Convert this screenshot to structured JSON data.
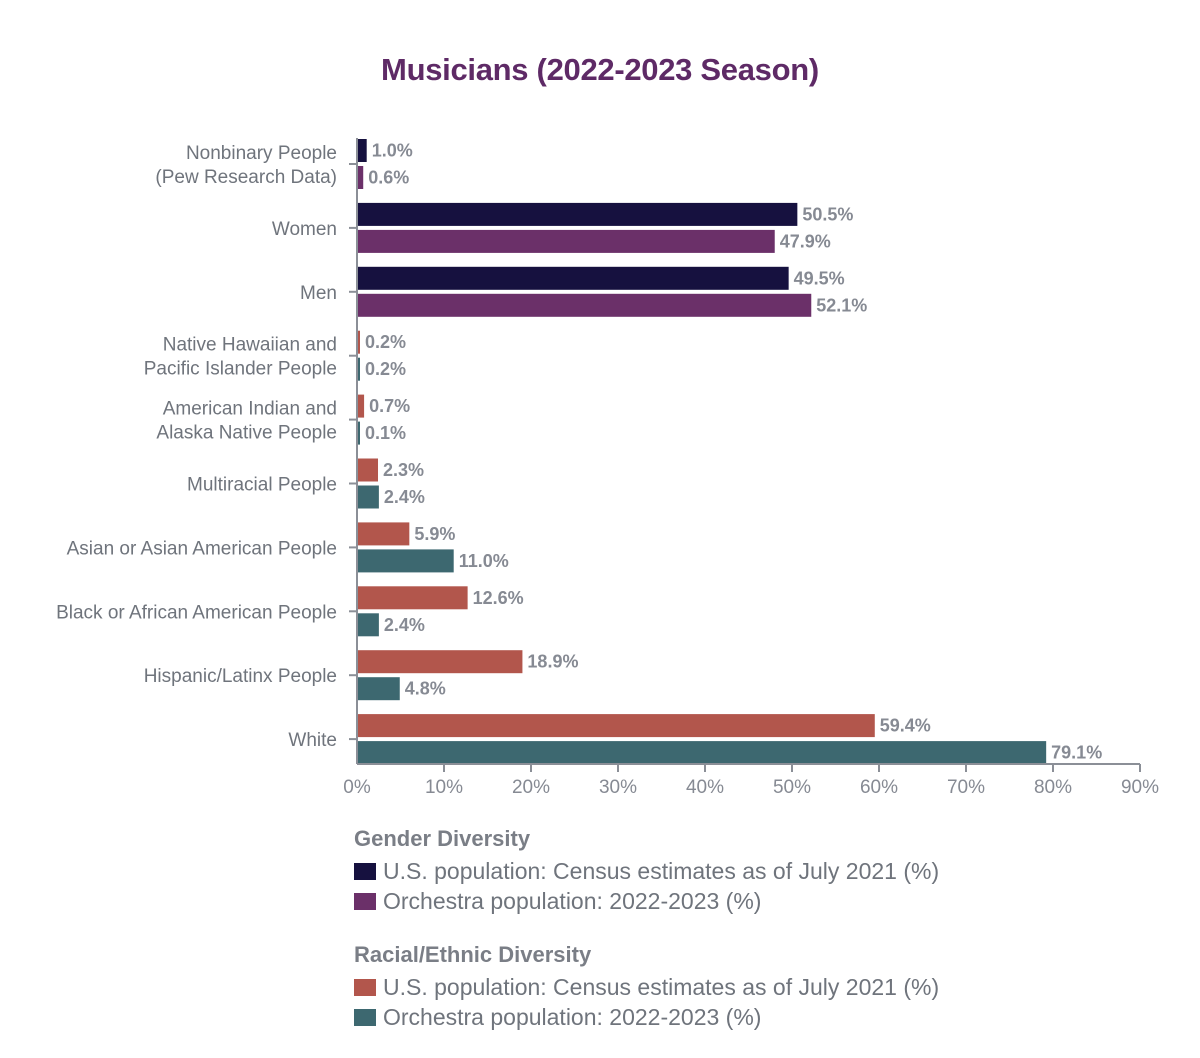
{
  "chart_data": {
    "type": "bar",
    "orientation": "horizontal",
    "title": "Musicians (2022-2023 Season)",
    "xlabel": "",
    "ylabel": "",
    "xlim": [
      0,
      90
    ],
    "xticks": [
      0,
      10,
      20,
      30,
      40,
      50,
      60,
      70,
      80,
      90
    ],
    "xtick_labels": [
      "0%",
      "10%",
      "20%",
      "30%",
      "40%",
      "50%",
      "60%",
      "70%",
      "80%",
      "90%"
    ],
    "grid": false,
    "legend_placement": "bottom",
    "categories": [
      {
        "label": [
          "Nonbinary People",
          "(Pew Research Data)"
        ],
        "group": "gender",
        "us": 1.0,
        "orchestra": 0.6,
        "us_label": "1.0%",
        "orchestra_label": "0.6%"
      },
      {
        "label": [
          "Women"
        ],
        "group": "gender",
        "us": 50.5,
        "orchestra": 47.9,
        "us_label": "50.5%",
        "orchestra_label": "47.9%"
      },
      {
        "label": [
          "Men"
        ],
        "group": "gender",
        "us": 49.5,
        "orchestra": 52.1,
        "us_label": "49.5%",
        "orchestra_label": "52.1%"
      },
      {
        "label": [
          "Native Hawaiian and",
          "Pacific Islander People"
        ],
        "group": "race",
        "us": 0.2,
        "orchestra": 0.2,
        "us_label": "0.2%",
        "orchestra_label": "0.2%"
      },
      {
        "label": [
          "American Indian and",
          "Alaska Native People"
        ],
        "group": "race",
        "us": 0.7,
        "orchestra": 0.1,
        "us_label": "0.7%",
        "orchestra_label": "0.1%"
      },
      {
        "label": [
          "Multiracial People"
        ],
        "group": "race",
        "us": 2.3,
        "orchestra": 2.4,
        "us_label": "2.3%",
        "orchestra_label": "2.4%"
      },
      {
        "label": [
          "Asian or Asian American People"
        ],
        "group": "race",
        "us": 5.9,
        "orchestra": 11.0,
        "us_label": "5.9%",
        "orchestra_label": "11.0%"
      },
      {
        "label": [
          "Black or African American People"
        ],
        "group": "race",
        "us": 12.6,
        "orchestra": 2.4,
        "us_label": "12.6%",
        "orchestra_label": "2.4%"
      },
      {
        "label": [
          "Hispanic/Latinx People"
        ],
        "group": "race",
        "us": 18.9,
        "orchestra": 4.8,
        "us_label": "18.9%",
        "orchestra_label": "4.8%"
      },
      {
        "label": [
          "White"
        ],
        "group": "race",
        "us": 59.4,
        "orchestra": 79.1,
        "us_label": "59.4%",
        "orchestra_label": "79.1%"
      }
    ],
    "series": [
      {
        "name": "U.S. population: Census estimates as of July 2021 (%)",
        "key": "us"
      },
      {
        "name": "Orchestra population: 2022-2023 (%)",
        "key": "orchestra"
      }
    ],
    "colors": {
      "gender": {
        "us": "#16113f",
        "orchestra": "#6b3069"
      },
      "race": {
        "us": "#b2564c",
        "orchestra": "#3d6870"
      }
    }
  },
  "legend": {
    "gender": {
      "title": "Gender Diversity",
      "items": [
        {
          "label": "U.S. population: Census estimates as of July 2021 (%)",
          "color": "#16113f"
        },
        {
          "label": "Orchestra population: 2022-2023 (%)",
          "color": "#6b3069"
        }
      ]
    },
    "race": {
      "title": "Racial/Ethnic Diversity",
      "items": [
        {
          "label": "U.S. population: Census estimates as of July 2021 (%)",
          "color": "#b2564c"
        },
        {
          "label": "Orchestra population: 2022-2023 (%)",
          "color": "#3d6870"
        }
      ]
    }
  }
}
